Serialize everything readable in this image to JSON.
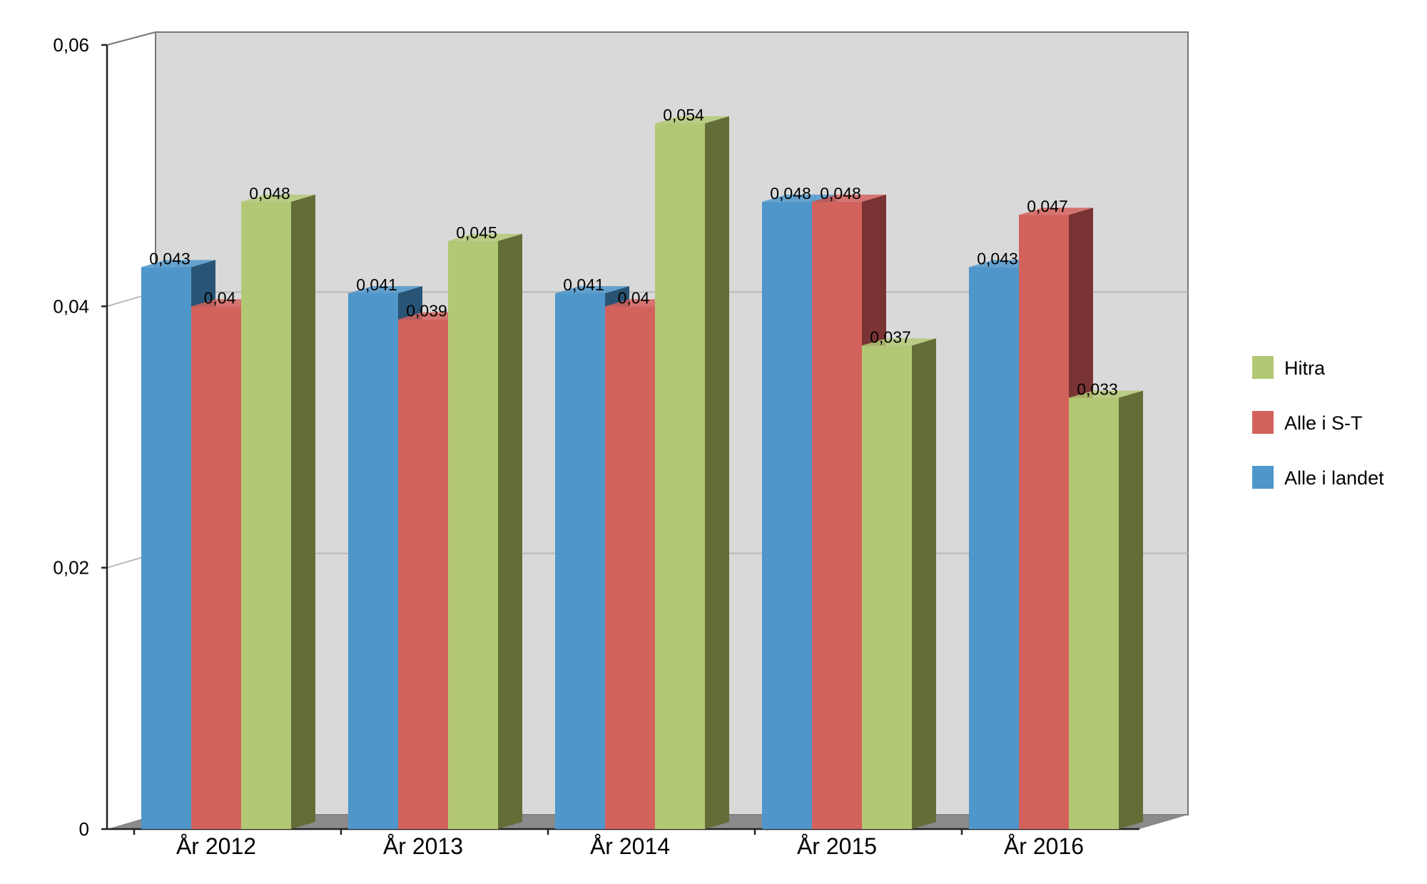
{
  "chart_data": {
    "type": "bar",
    "categories": [
      "År 2012",
      "År 2013",
      "År 2014",
      "År 2015",
      "År 2016"
    ],
    "series": [
      {
        "name": "Alle i landet",
        "values": [
          0.043,
          0.041,
          0.041,
          0.048,
          0.043
        ],
        "labels": [
          "0,043",
          "0,041",
          "0,041",
          "0,048",
          "0,043"
        ],
        "color": "#4f96cb",
        "side_color": "#2a5475"
      },
      {
        "name": "Alle i S-T",
        "values": [
          0.04,
          0.039,
          0.04,
          0.048,
          0.047
        ],
        "labels": [
          "0,04",
          "0,039",
          "0,04",
          "0,048",
          "0,047"
        ],
        "color": "#d3625d",
        "side_color": "#7a3333"
      },
      {
        "name": "Hitra",
        "values": [
          0.048,
          0.045,
          0.054,
          0.037,
          0.033
        ],
        "labels": [
          "0,048",
          "0,045",
          "0,054",
          "0,037",
          "0,033"
        ],
        "color": "#b3c874",
        "side_color": "#646d38"
      }
    ],
    "yticks": [
      0,
      0.02,
      0.04,
      0.06
    ],
    "ytick_labels": [
      "0",
      "0,02",
      "0,04",
      "0,06"
    ],
    "ylim": [
      0,
      0.06
    ],
    "legend_order": [
      "Hitra",
      "Alle i S-T",
      "Alle i landet"
    ],
    "legend_position": "right",
    "grid": true,
    "style": "3d",
    "colors": {
      "back_wall": "#d9d9d9",
      "floor": "#8a8a8a",
      "gridline": "#b8b8b8"
    }
  }
}
